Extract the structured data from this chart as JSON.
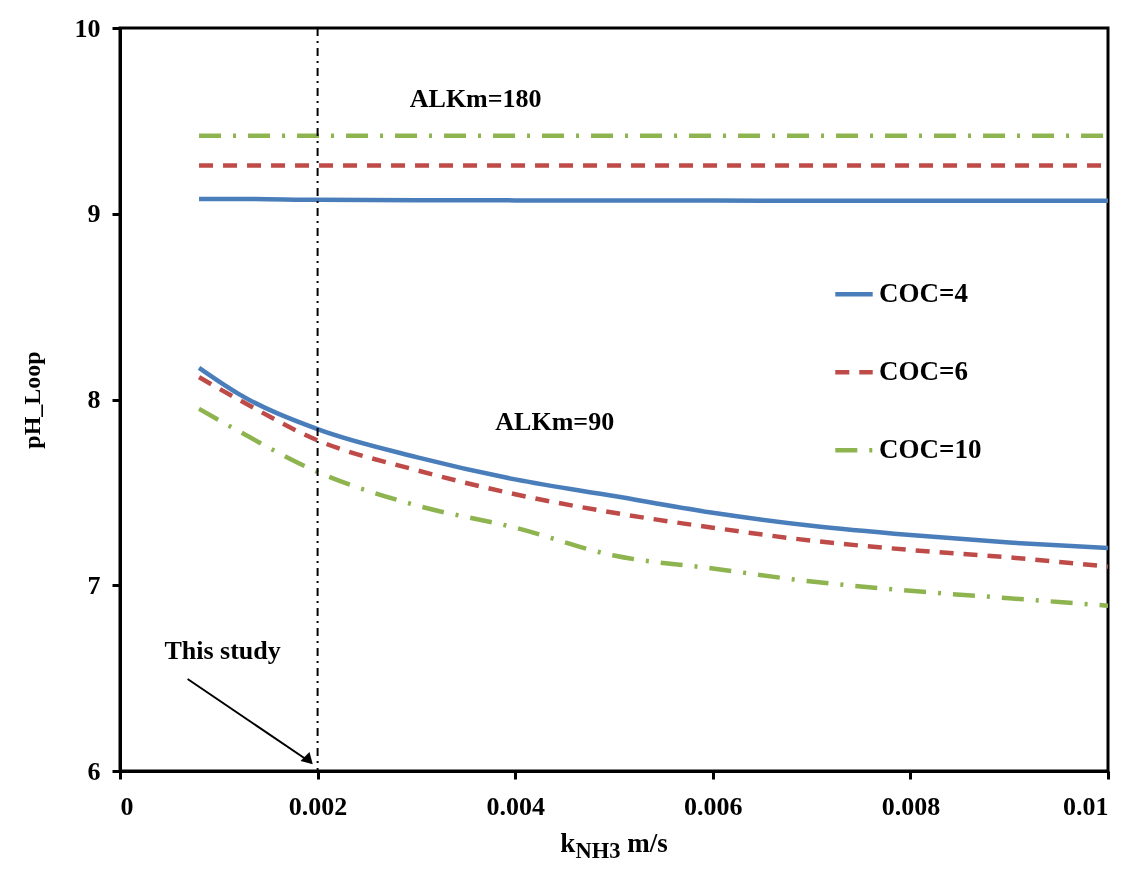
{
  "chart_data": {
    "type": "line",
    "xlabel": "k$_{NH3}$ m/s",
    "ylabel": "pH_Loop",
    "x": [
      0.0008,
      0.0012,
      0.002,
      0.003,
      0.004,
      0.005,
      0.006,
      0.007,
      0.008,
      0.009,
      0.01
    ],
    "series": [
      {
        "name": "COC=4",
        "color": "#4a7ebb",
        "line_style": "solid",
        "values": [
          8.17,
          8.03,
          7.84,
          7.69,
          7.57,
          7.48,
          7.39,
          7.32,
          7.27,
          7.23,
          7.2
        ]
      },
      {
        "name": "COC=6",
        "color": "#be4b48",
        "line_style": "dashed",
        "values": [
          8.12,
          8.0,
          7.78,
          7.62,
          7.49,
          7.39,
          7.31,
          7.24,
          7.19,
          7.15,
          7.1
        ]
      },
      {
        "name": "COC=10",
        "color": "#8eb44f",
        "line_style": "dashdot",
        "values": [
          7.95,
          7.83,
          7.61,
          7.43,
          7.31,
          7.16,
          7.09,
          7.02,
          6.97,
          6.93,
          6.89
        ]
      },
      {
        "color": "#4a7ebb",
        "line_style": "solid",
        "values": [
          9.08,
          9.08,
          9.075,
          9.073,
          9.072,
          9.071,
          9.071,
          9.07,
          9.07,
          9.07,
          9.07
        ]
      },
      {
        "color": "#be4b48",
        "line_style": "dashed",
        "values": [
          9.26,
          9.26,
          9.26,
          9.26,
          9.26,
          9.26,
          9.26,
          9.26,
          9.26,
          9.26,
          9.26
        ]
      },
      {
        "color": "#8eb44f",
        "line_style": "dashdot",
        "values": [
          9.42,
          9.42,
          9.42,
          9.42,
          9.42,
          9.42,
          9.42,
          9.42,
          9.42,
          9.42,
          9.42
        ]
      }
    ],
    "xlim": [
      0,
      0.01
    ],
    "xticks": [
      0,
      0.002,
      0.004,
      0.006,
      0.008,
      0.01
    ],
    "ylim": [
      6,
      10
    ],
    "yticks": [
      6,
      7,
      8,
      9,
      10
    ],
    "grid": false,
    "legend": "right",
    "marker": "none",
    "ref_lines": [
      {
        "axis": "x",
        "value": 0.002,
        "color": "#000000",
        "line_style": "dashdot"
      }
    ],
    "annotations": [
      "ALKm=180",
      "ALKm=90",
      "This study"
    ]
  }
}
